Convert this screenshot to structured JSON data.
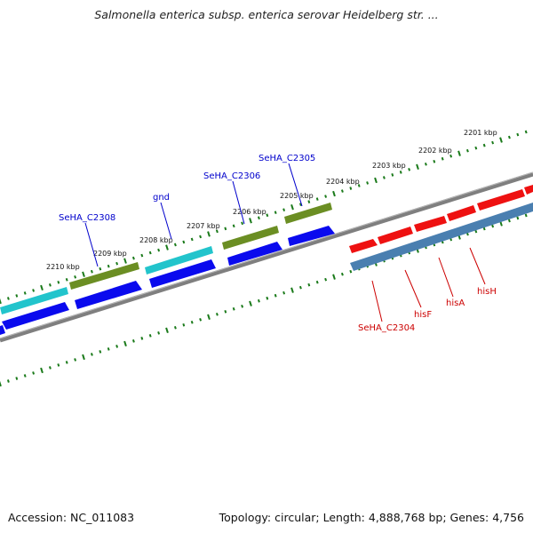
{
  "title": "Salmonella enterica subsp. enterica serovar Heidelberg str. ...",
  "footer": {
    "accession": "Accession: NC_011083",
    "topology": "Topology: circular; Length: 4,888,768 bp; Genes: 4,756"
  },
  "colors": {
    "backbone": "#7f7f7f",
    "tick": "#1a7a1a",
    "label_blue": "#0000cc",
    "label_red": "#cc0000",
    "red_feature": "#ee1111",
    "blue_feature": "#0a0aee",
    "cyan_feature": "#22c4cc",
    "olive_feature": "#6b8e23",
    "steel_feature": "#4a7fb0"
  },
  "ruler": {
    "unit": "kbp",
    "labels": [
      "2201 kbp",
      "2202 kbp",
      "2203 kbp",
      "2204 kbp",
      "2205 kbp",
      "2206 kbp",
      "2207 kbp",
      "2208 kbp",
      "2209 kbp",
      "2210 kbp"
    ]
  },
  "gene_labels": [
    {
      "name": "SeHA_C2305",
      "color": "blue"
    },
    {
      "name": "SeHA_C2306",
      "color": "blue"
    },
    {
      "name": "gnd",
      "color": "blue"
    },
    {
      "name": "SeHA_C2308",
      "color": "blue"
    },
    {
      "name": "SeHA_C2304",
      "color": "red"
    },
    {
      "name": "hisF",
      "color": "red"
    },
    {
      "name": "hisA",
      "color": "red"
    },
    {
      "name": "hisH",
      "color": "red"
    }
  ],
  "legend_icons": [
    "forward-arrow-icon",
    "reverse-arrow-icon"
  ]
}
